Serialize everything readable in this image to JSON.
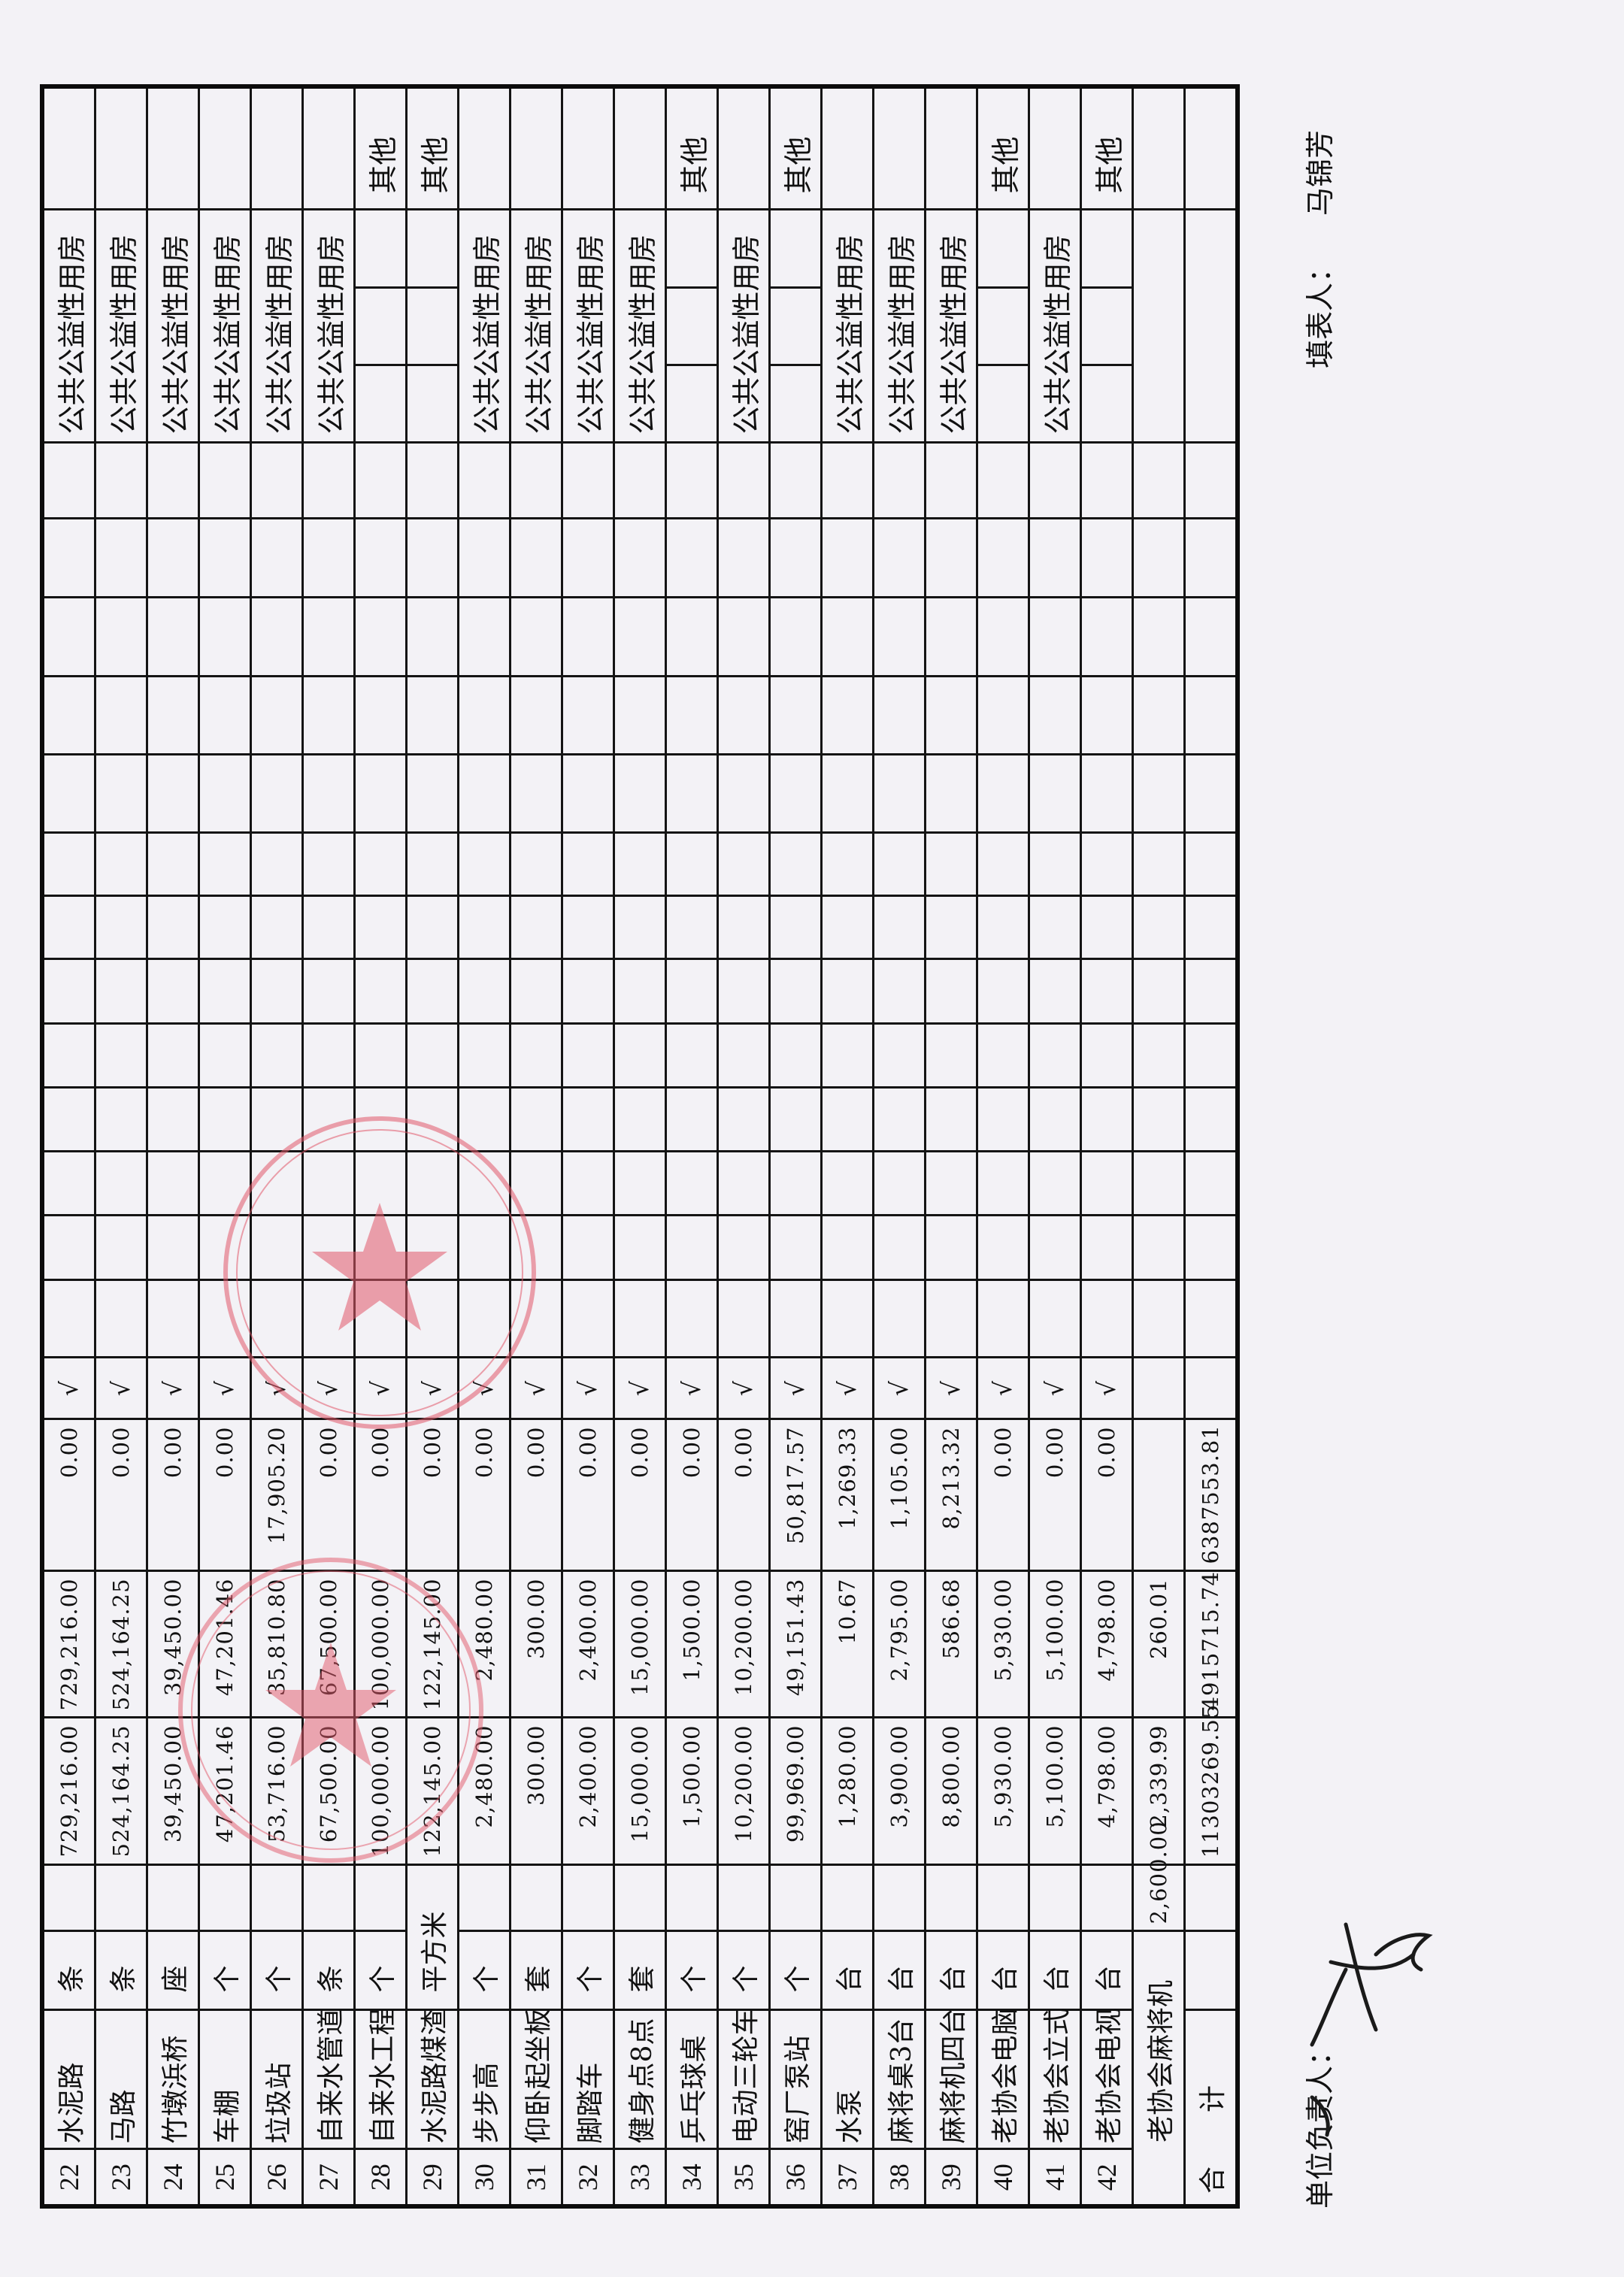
{
  "colors": {
    "ink": "#111111",
    "seal": "#e2596b",
    "paper": "#f3f2f6"
  },
  "rows": [
    {
      "no": "22",
      "name": "水泥路",
      "unit": "条",
      "a": "729,216.00",
      "b": "729,216.00",
      "c": "0.00",
      "check": "√",
      "use": "公共公益性用房",
      "other": ""
    },
    {
      "no": "23",
      "name": "马路",
      "unit": "条",
      "a": "524,164.25",
      "b": "524,164.25",
      "c": "0.00",
      "check": "√",
      "use": "公共公益性用房",
      "other": ""
    },
    {
      "no": "24",
      "name": "竹墩浜桥",
      "unit": "座",
      "a": "39,450.00",
      "b": "39,450.00",
      "c": "0.00",
      "check": "√",
      "use": "公共公益性用房",
      "other": ""
    },
    {
      "no": "25",
      "name": "车棚",
      "unit": "个",
      "a": "47,201.46",
      "b": "47,201.46",
      "c": "0.00",
      "check": "√",
      "use": "公共公益性用房",
      "other": ""
    },
    {
      "no": "26",
      "name": "垃圾站",
      "unit": "个",
      "a": "53,716.00",
      "b": "35,810.80",
      "c": "17,905.20",
      "check": "√",
      "use": "公共公益性用房",
      "other": ""
    },
    {
      "no": "27",
      "name": "自来水管道",
      "unit": "条",
      "a": "67,500.00",
      "b": "67,500.00",
      "c": "0.00",
      "check": "√",
      "use": "公共公益性用房",
      "other": ""
    },
    {
      "no": "28",
      "name": "自来水工程",
      "unit": "个",
      "a": "100,000.00",
      "b": "100,000.00",
      "c": "0.00",
      "check": "√",
      "use": "",
      "other": "其他"
    },
    {
      "no": "29",
      "name": "水泥路煤渣",
      "unit": "平方米",
      "a": "122,145.00",
      "b": "122,145.00",
      "c": "0.00",
      "check": "√",
      "use": "",
      "other": "其他",
      "wide_unit": true
    },
    {
      "no": "30",
      "name": "步步高",
      "unit": "个",
      "a": "2,480.00",
      "b": "2,480.00",
      "c": "0.00",
      "check": "√",
      "use": "公共公益性用房",
      "other": ""
    },
    {
      "no": "31",
      "name": "仰卧起坐板",
      "unit": "套",
      "a": "300.00",
      "b": "300.00",
      "c": "0.00",
      "check": "√",
      "use": "公共公益性用房",
      "other": ""
    },
    {
      "no": "32",
      "name": "脚踏车",
      "unit": "个",
      "a": "2,400.00",
      "b": "2,400.00",
      "c": "0.00",
      "check": "√",
      "use": "公共公益性用房",
      "other": ""
    },
    {
      "no": "33",
      "name": "健身点8点",
      "unit": "套",
      "a": "15,000.00",
      "b": "15,000.00",
      "c": "0.00",
      "check": "√",
      "use": "公共公益性用房",
      "other": ""
    },
    {
      "no": "34",
      "name": "乒乓球桌",
      "unit": "个",
      "a": "1,500.00",
      "b": "1,500.00",
      "c": "0.00",
      "check": "√",
      "use": "",
      "other": "其他"
    },
    {
      "no": "35",
      "name": "电动三轮车",
      "unit": "个",
      "a": "10,200.00",
      "b": "10,200.00",
      "c": "0.00",
      "check": "√",
      "use": "公共公益性用房",
      "other": ""
    },
    {
      "no": "36",
      "name": "窑厂泵站",
      "unit": "个",
      "a": "99,969.00",
      "b": "49,151.43",
      "c": "50,817.57",
      "check": "√",
      "use": "",
      "other": "其他"
    },
    {
      "no": "37",
      "name": "水泵",
      "unit": "台",
      "a": "1,280.00",
      "b": "10.67",
      "c": "1,269.33",
      "check": "√",
      "use": "公共公益性用房",
      "other": ""
    },
    {
      "no": "38",
      "name": "麻将桌3台",
      "unit": "台",
      "a": "3,900.00",
      "b": "2,795.00",
      "c": "1,105.00",
      "check": "√",
      "use": "公共公益性用房",
      "other": ""
    },
    {
      "no": "39",
      "name": "麻将机四台",
      "unit": "台",
      "a": "8,800.00",
      "b": "586.68",
      "c": "8,213.32",
      "check": "√",
      "use": "公共公益性用房",
      "other": ""
    },
    {
      "no": "40",
      "name": "老协会电脑",
      "unit": "台",
      "a": "5,930.00",
      "b": "5,930.00",
      "c": "0.00",
      "check": "√",
      "use": "",
      "other": "其他"
    },
    {
      "no": "41",
      "name": "老协会立式",
      "unit": "台",
      "a": "5,100.00",
      "b": "5,100.00",
      "c": "0.00",
      "check": "√",
      "use": "公共公益性用房",
      "other": ""
    },
    {
      "no": "42",
      "name": "老协会电视",
      "unit": "台",
      "a": "4,798.00",
      "b": "4,798.00",
      "c": "0.00",
      "check": "√",
      "use": "",
      "other": "其他"
    },
    {
      "no": "",
      "name": "老协会麻将机",
      "unit": "",
      "a": "2,600.00",
      "b": "2,339.99",
      "c": "260.01",
      "check": "",
      "use": "",
      "other": "",
      "merged_name": true,
      "blank_use": true
    }
  ],
  "total": {
    "label": "合计",
    "a": "11303269.55",
    "b": "4915715.74",
    "c": "6387553.81"
  },
  "footer": {
    "unit_head_label": "单位负责人：",
    "filler_label": "填表人：",
    "filler_name": "马锦芳"
  }
}
